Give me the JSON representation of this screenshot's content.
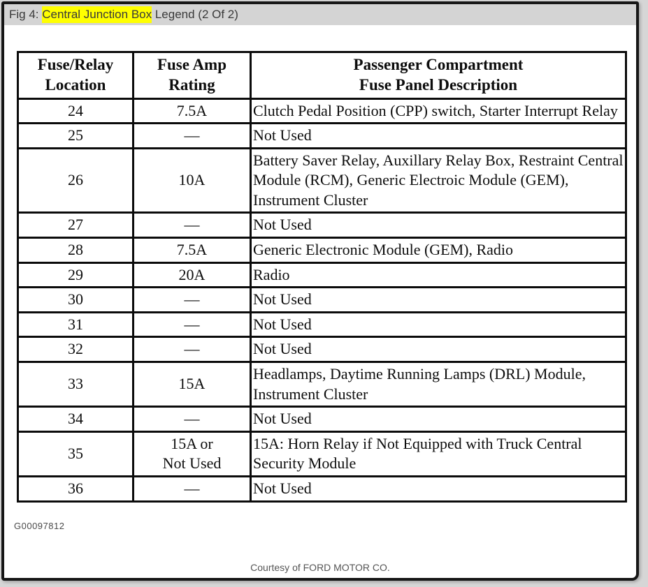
{
  "figbar": {
    "prefix": "Fig 4: ",
    "highlight": "Central Junction Box",
    "suffix": " Legend (2 Of 2)"
  },
  "colors": {
    "search_highlight": "#ffff00",
    "caption_bar": "#d4d4d4",
    "table_border": "#0b0b0b"
  },
  "table": {
    "headers": [
      "Fuse/Relay\nLocation",
      "Fuse Amp\nRating",
      "Passenger Compartment\nFuse Panel Description"
    ],
    "rows": [
      {
        "location": "24",
        "rating": "7.5A",
        "description": "Clutch Pedal Position (CPP) switch, Starter Interrupt Relay"
      },
      {
        "location": "25",
        "rating": "—",
        "description": "Not Used"
      },
      {
        "location": "26",
        "rating": "10A",
        "description": "Battery Saver Relay, Auxillary Relay Box, Restraint Central Module (RCM), Generic Electroic Module (GEM), Instrument Cluster"
      },
      {
        "location": "27",
        "rating": "—",
        "description": "Not Used"
      },
      {
        "location": "28",
        "rating": "7.5A",
        "description": "Generic Electronic Module (GEM), Radio"
      },
      {
        "location": "29",
        "rating": "20A",
        "description": "Radio"
      },
      {
        "location": "30",
        "rating": "—",
        "description": "Not Used"
      },
      {
        "location": "31",
        "rating": "—",
        "description": "Not Used"
      },
      {
        "location": "32",
        "rating": "—",
        "description": "Not Used"
      },
      {
        "location": "33",
        "rating": "15A",
        "description": "Headlamps, Daytime Running Lamps (DRL) Module, Instrument Cluster"
      },
      {
        "location": "34",
        "rating": "—",
        "description": "Not Used"
      },
      {
        "location": "35",
        "rating": "15A or\nNot Used",
        "description": "15A: Horn Relay if Not Equipped with Truck Central Security Module"
      },
      {
        "location": "36",
        "rating": "—",
        "description": "Not Used"
      }
    ]
  },
  "footer": {
    "figure_id": "G00097812",
    "courtesy": "Courtesy of FORD MOTOR CO."
  }
}
